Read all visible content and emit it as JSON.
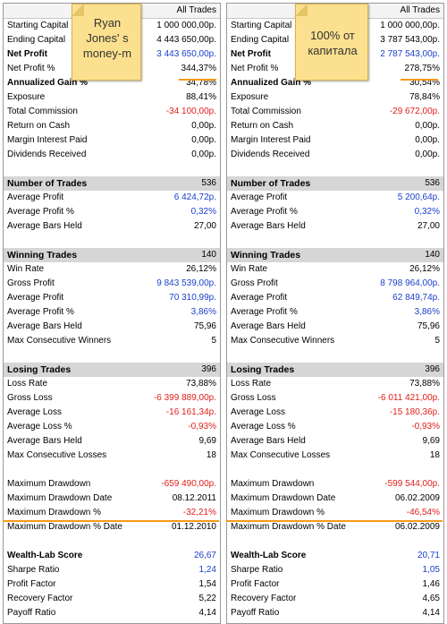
{
  "panels": [
    {
      "header": "All Trades",
      "rows": [
        {
          "label": "Starting Capital",
          "value": "1 000 000,00р.",
          "style": "",
          "color": ""
        },
        {
          "label": "Ending Capital",
          "value": "4 443 650,00р.",
          "style": "",
          "color": ""
        },
        {
          "label": "Net Profit",
          "value": "3 443 650,00р.",
          "style": "bold",
          "color": "blue"
        },
        {
          "label": "Net Profit %",
          "value": "344,37%",
          "style": "",
          "color": ""
        },
        {
          "label": "Annualized Gain %",
          "value": "34,78%",
          "style": "bold",
          "color": ""
        },
        {
          "label": "Exposure",
          "value": "88,41%",
          "style": "",
          "color": ""
        },
        {
          "label": "Total Commission",
          "value": "-34 100,00р.",
          "style": "",
          "color": "red"
        },
        {
          "label": "Return on Cash",
          "value": "0,00р.",
          "style": "",
          "color": ""
        },
        {
          "label": "Margin Interest Paid",
          "value": "0,00р.",
          "style": "",
          "color": ""
        },
        {
          "label": "Dividends Received",
          "value": "0,00р.",
          "style": "",
          "color": ""
        },
        {
          "label": "",
          "value": "",
          "style": "gap",
          "color": ""
        },
        {
          "label": "Number of Trades",
          "value": "536",
          "style": "sec",
          "color": ""
        },
        {
          "label": "Average Profit",
          "value": "6 424,72р.",
          "style": "",
          "color": "blue"
        },
        {
          "label": "Average Profit %",
          "value": "0,32%",
          "style": "",
          "color": "blue"
        },
        {
          "label": "Average Bars Held",
          "value": "27,00",
          "style": "",
          "color": ""
        },
        {
          "label": "",
          "value": "",
          "style": "gap",
          "color": ""
        },
        {
          "label": "Winning Trades",
          "value": "140",
          "style": "sec",
          "color": ""
        },
        {
          "label": "Win Rate",
          "value": "26,12%",
          "style": "",
          "color": ""
        },
        {
          "label": "Gross Profit",
          "value": "9 843 539,00р.",
          "style": "",
          "color": "blue"
        },
        {
          "label": "Average Profit",
          "value": "70 310,99р.",
          "style": "",
          "color": "blue"
        },
        {
          "label": "Average Profit %",
          "value": "3,86%",
          "style": "",
          "color": "blue"
        },
        {
          "label": "Average Bars Held",
          "value": "75,96",
          "style": "",
          "color": ""
        },
        {
          "label": "Max Consecutive Winners",
          "value": "5",
          "style": "",
          "color": ""
        },
        {
          "label": "",
          "value": "",
          "style": "gap",
          "color": ""
        },
        {
          "label": "Losing Trades",
          "value": "396",
          "style": "sec",
          "color": ""
        },
        {
          "label": "Loss Rate",
          "value": "73,88%",
          "style": "",
          "color": ""
        },
        {
          "label": "Gross Loss",
          "value": "-6 399 889,00р.",
          "style": "",
          "color": "red"
        },
        {
          "label": "Average Loss",
          "value": "-16 161,34р.",
          "style": "",
          "color": "red"
        },
        {
          "label": "Average Loss %",
          "value": "-0,93%",
          "style": "",
          "color": "red"
        },
        {
          "label": "Average Bars Held",
          "value": "9,69",
          "style": "",
          "color": ""
        },
        {
          "label": "Max Consecutive Losses",
          "value": "18",
          "style": "",
          "color": ""
        },
        {
          "label": "",
          "value": "",
          "style": "gap",
          "color": ""
        },
        {
          "label": "Maximum Drawdown",
          "value": "-659 490,00р.",
          "style": "",
          "color": "red"
        },
        {
          "label": "Maximum Drawdown Date",
          "value": "08.12.2011",
          "style": "",
          "color": ""
        },
        {
          "label": "Maximum Drawdown %",
          "value": "-32,21%",
          "style": "",
          "color": "red"
        },
        {
          "label": "Maximum Drawdown % Date",
          "value": "01.12.2010",
          "style": "",
          "color": ""
        },
        {
          "label": "",
          "value": "",
          "style": "gap",
          "color": ""
        },
        {
          "label": "Wealth-Lab Score",
          "value": "26,67",
          "style": "bold",
          "color": "blue"
        },
        {
          "label": "Sharpe Ratio",
          "value": "1,24",
          "style": "",
          "color": "blue"
        },
        {
          "label": "Profit Factor",
          "value": "1,54",
          "style": "",
          "color": ""
        },
        {
          "label": "Recovery Factor",
          "value": "5,22",
          "style": "",
          "color": ""
        },
        {
          "label": "Payoff Ratio",
          "value": "4,14",
          "style": "",
          "color": ""
        }
      ]
    },
    {
      "header": "All Trades",
      "rows": [
        {
          "label": "Starting Capital",
          "value": "1 000 000,00р.",
          "style": "",
          "color": ""
        },
        {
          "label": "Ending Capital",
          "value": "3 787 543,00р.",
          "style": "",
          "color": ""
        },
        {
          "label": "Net Profit",
          "value": "2 787 543,00р.",
          "style": "bold",
          "color": "blue"
        },
        {
          "label": "Net Profit %",
          "value": "278,75%",
          "style": "",
          "color": ""
        },
        {
          "label": "Annualized Gain %",
          "value": "30,54%",
          "style": "bold",
          "color": ""
        },
        {
          "label": "Exposure",
          "value": "78,84%",
          "style": "",
          "color": ""
        },
        {
          "label": "Total Commission",
          "value": "-29 672,00р.",
          "style": "",
          "color": "red"
        },
        {
          "label": "Return on Cash",
          "value": "0,00р.",
          "style": "",
          "color": ""
        },
        {
          "label": "Margin Interest Paid",
          "value": "0,00р.",
          "style": "",
          "color": ""
        },
        {
          "label": "Dividends Received",
          "value": "0,00р.",
          "style": "",
          "color": ""
        },
        {
          "label": "",
          "value": "",
          "style": "gap",
          "color": ""
        },
        {
          "label": "Number of Trades",
          "value": "536",
          "style": "sec",
          "color": ""
        },
        {
          "label": "Average Profit",
          "value": "5 200,64р.",
          "style": "",
          "color": "blue"
        },
        {
          "label": "Average Profit %",
          "value": "0,32%",
          "style": "",
          "color": "blue"
        },
        {
          "label": "Average Bars Held",
          "value": "27,00",
          "style": "",
          "color": ""
        },
        {
          "label": "",
          "value": "",
          "style": "gap",
          "color": ""
        },
        {
          "label": "Winning Trades",
          "value": "140",
          "style": "sec",
          "color": ""
        },
        {
          "label": "Win Rate",
          "value": "26,12%",
          "style": "",
          "color": ""
        },
        {
          "label": "Gross Profit",
          "value": "8 798 964,00р.",
          "style": "",
          "color": "blue"
        },
        {
          "label": "Average Profit",
          "value": "62 849,74р.",
          "style": "",
          "color": "blue"
        },
        {
          "label": "Average Profit %",
          "value": "3,86%",
          "style": "",
          "color": "blue"
        },
        {
          "label": "Average Bars Held",
          "value": "75,96",
          "style": "",
          "color": ""
        },
        {
          "label": "Max Consecutive Winners",
          "value": "5",
          "style": "",
          "color": ""
        },
        {
          "label": "",
          "value": "",
          "style": "gap",
          "color": ""
        },
        {
          "label": "Losing Trades",
          "value": "396",
          "style": "sec",
          "color": ""
        },
        {
          "label": "Loss Rate",
          "value": "73,88%",
          "style": "",
          "color": ""
        },
        {
          "label": "Gross Loss",
          "value": "-6 011 421,00р.",
          "style": "",
          "color": "red"
        },
        {
          "label": "Average Loss",
          "value": "-15 180,36р.",
          "style": "",
          "color": "red"
        },
        {
          "label": "Average Loss %",
          "value": "-0,93%",
          "style": "",
          "color": "red"
        },
        {
          "label": "Average Bars Held",
          "value": "9,69",
          "style": "",
          "color": ""
        },
        {
          "label": "Max Consecutive Losses",
          "value": "18",
          "style": "",
          "color": ""
        },
        {
          "label": "",
          "value": "",
          "style": "gap",
          "color": ""
        },
        {
          "label": "Maximum Drawdown",
          "value": "-599 544,00р.",
          "style": "",
          "color": "red"
        },
        {
          "label": "Maximum Drawdown Date",
          "value": "06.02.2009",
          "style": "",
          "color": ""
        },
        {
          "label": "Maximum Drawdown %",
          "value": "-46,54%",
          "style": "",
          "color": "red"
        },
        {
          "label": "Maximum Drawdown % Date",
          "value": "06.02.2009",
          "style": "",
          "color": ""
        },
        {
          "label": "",
          "value": "",
          "style": "gap",
          "color": ""
        },
        {
          "label": "Wealth-Lab Score",
          "value": "20,71",
          "style": "bold",
          "color": "blue"
        },
        {
          "label": "Sharpe Ratio",
          "value": "1,05",
          "style": "",
          "color": "blue"
        },
        {
          "label": "Profit Factor",
          "value": "1,46",
          "style": "",
          "color": ""
        },
        {
          "label": "Recovery Factor",
          "value": "4,65",
          "style": "",
          "color": ""
        },
        {
          "label": "Payoff Ratio",
          "value": "4,14",
          "style": "",
          "color": ""
        }
      ]
    }
  ],
  "notes": {
    "left": "Ryan Jones' s money-m",
    "right": "100% от капитала"
  },
  "colors": {
    "blue": "#1a3fcc",
    "red": "#e0201a",
    "highlight_line": "#f59a1a",
    "note_bg": "#fbe08f",
    "section_bg": "#d6d6d6"
  }
}
